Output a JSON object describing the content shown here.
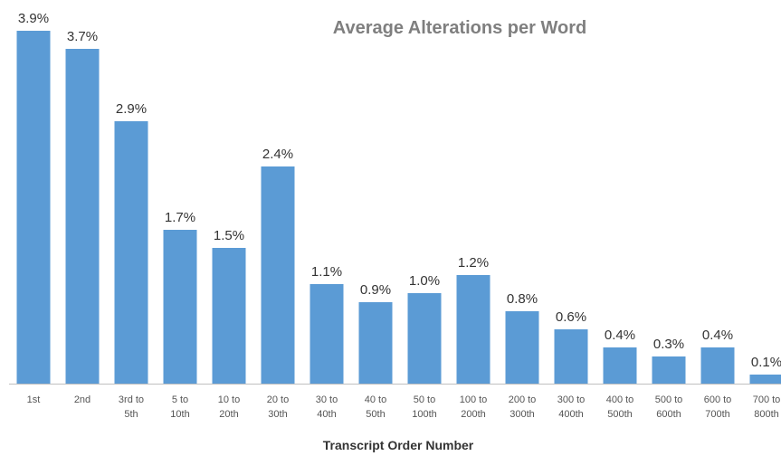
{
  "chart_data": {
    "type": "bar",
    "title": "Average Alterations per Word",
    "x_label": "Transcript Order Number",
    "categories": [
      "1st",
      "2nd",
      "3rd to 5th",
      "5 to 10th",
      "10 to 20th",
      "20 to 30th",
      "30 to 40th",
      "40 to 50th",
      "50 to 100th",
      "100 to 200th",
      "200 to 300th",
      "300 to 400th",
      "400 to 500th",
      "500 to 600th",
      "600 to 700th",
      "700 to 800th"
    ],
    "values": [
      3.9,
      3.7,
      2.9,
      1.7,
      1.5,
      2.4,
      1.1,
      0.9,
      1.0,
      1.2,
      0.8,
      0.6,
      0.4,
      0.3,
      0.4,
      0.1
    ],
    "value_labels": [
      "3.9%",
      "3.7%",
      "2.9%",
      "1.7%",
      "1.5%",
      "2.4%",
      "1.1%",
      "0.9%",
      "1.0%",
      "1.2%",
      "0.8%",
      "0.6%",
      "0.4%",
      "0.3%",
      "0.4%",
      "0.1%"
    ],
    "color": "#5b9bd5",
    "ylim": [
      0,
      4
    ]
  }
}
